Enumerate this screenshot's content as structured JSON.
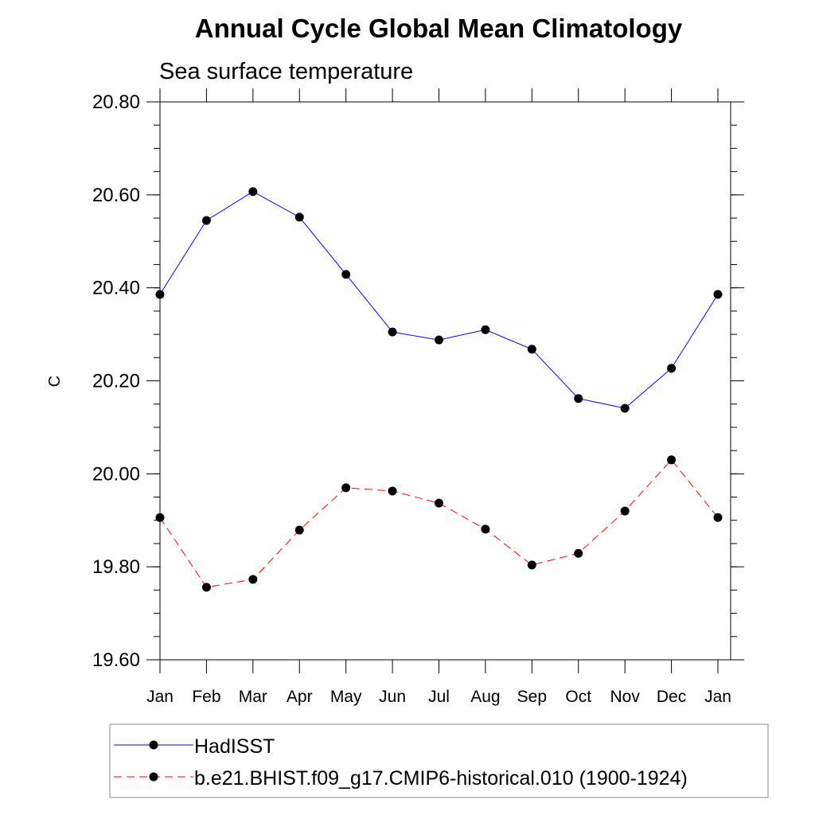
{
  "chart_data": {
    "type": "line",
    "title": "Annual Cycle Global Mean Climatology",
    "subtitle": "Sea surface temperature",
    "xlabel": "",
    "ylabel": "C",
    "categories": [
      "Jan",
      "Feb",
      "Mar",
      "Apr",
      "May",
      "Jun",
      "Jul",
      "Aug",
      "Sep",
      "Oct",
      "Nov",
      "Dec",
      "Jan"
    ],
    "ylim": [
      19.6,
      20.8
    ],
    "yticks": [
      "19.60",
      "19.80",
      "20.00",
      "20.20",
      "20.40",
      "20.60",
      "20.80"
    ],
    "yminor_step": 0.05,
    "grid": false,
    "legend_placement": "bottom",
    "series": [
      {
        "name": "HadISST",
        "color": "#0000ff",
        "dash": "solid",
        "values": [
          20.386,
          20.545,
          20.607,
          20.552,
          20.429,
          20.305,
          20.288,
          20.31,
          20.268,
          20.162,
          20.141,
          20.227,
          20.386
        ]
      },
      {
        "name": "b.e21.BHIST.f09_g17.CMIP6-historical.010 (1900-1924)",
        "color": "#ff0000",
        "dash": "dashed",
        "values": [
          19.906,
          19.756,
          19.773,
          19.879,
          19.97,
          19.963,
          19.937,
          19.881,
          19.804,
          19.829,
          19.92,
          20.03,
          19.906
        ]
      }
    ]
  }
}
